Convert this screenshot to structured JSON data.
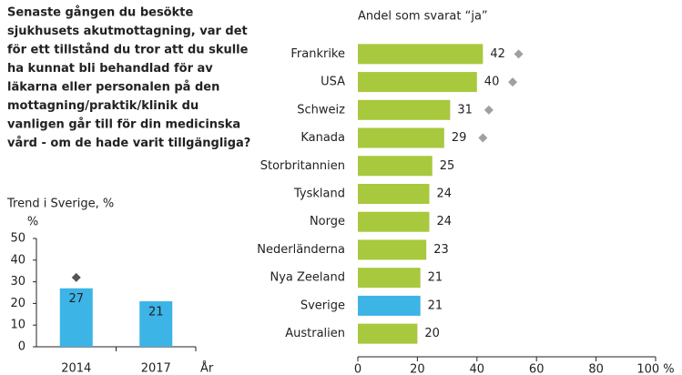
{
  "question": [
    "Senaste gången du besökte",
    "sjukhusets akutmottagning, var det",
    "för ett tillstånd du tror att du skulle",
    "ha kunnat bli behandlad för av",
    "läkarna eller personalen på den",
    "mottagning/praktik/klinik du",
    "vanligen går till för din medicinska",
    "vård - om de hade varit tillgängliga?"
  ],
  "chart_data": [
    {
      "type": "hbar",
      "title": "Andel som svarat “ja”",
      "categories": [
        "Frankrike",
        "USA",
        "Schweiz",
        "Kanada",
        "Storbritannien",
        "Tyskland",
        "Norge",
        "Nederländerna",
        "Nya Zeeland",
        "Sverige",
        "Australien"
      ],
      "values": [
        42,
        40,
        31,
        29,
        25,
        24,
        24,
        23,
        21,
        21,
        20
      ],
      "colors": [
        "#a8c83e",
        "#a8c83e",
        "#a8c83e",
        "#a8c83e",
        "#a8c83e",
        "#a8c83e",
        "#a8c83e",
        "#a8c83e",
        "#a8c83e",
        "#3cb4e6",
        "#a8c83e"
      ],
      "reference_values": [
        54,
        52,
        44,
        42,
        null,
        null,
        null,
        null,
        null,
        null,
        null
      ],
      "reference_color": "#a0a0a0",
      "xlim": [
        0,
        100
      ],
      "xticks": [
        0,
        20,
        40,
        60,
        80,
        {
          "value": 100,
          "label": "100 %"
        }
      ]
    },
    {
      "type": "bar",
      "title": "Trend i Sverige, %",
      "ylabel": "%",
      "xlabel": "År",
      "categories": [
        "2014",
        "2017"
      ],
      "values": [
        27,
        21
      ],
      "color": "#3cb4e6",
      "reference_values": [
        32,
        null
      ],
      "reference_color": "#555555",
      "ylim": [
        0,
        50
      ],
      "yticks": [
        0,
        10,
        20,
        30,
        40,
        50
      ]
    }
  ]
}
